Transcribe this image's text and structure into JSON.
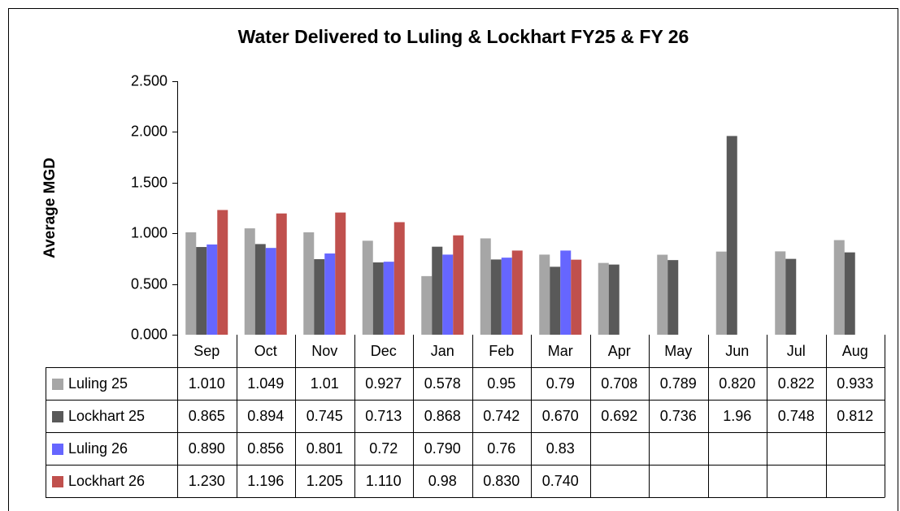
{
  "chart_data": {
    "type": "bar",
    "title": "Water Delivered to Luling & Lockhart FY25 & FY 26",
    "y_label": "Average MGD",
    "categories": [
      "Sep",
      "Oct",
      "Nov",
      "Dec",
      "Jan",
      "Feb",
      "Mar",
      "Apr",
      "May",
      "Jun",
      "Jul",
      "Aug"
    ],
    "series": [
      {
        "name": "Luling 25",
        "color": "#a6a6a6",
        "values": [
          1.01,
          1.049,
          1.01,
          0.927,
          0.578,
          0.95,
          0.79,
          0.708,
          0.789,
          0.82,
          0.822,
          0.933
        ],
        "value_labels": [
          "1.010",
          "1.049",
          "1.01",
          "0.927",
          "0.578",
          "0.95",
          "0.79",
          "0.708",
          "0.789",
          "0.820",
          "0.822",
          "0.933"
        ]
      },
      {
        "name": "Lockhart 25",
        "color": "#595959",
        "values": [
          0.865,
          0.894,
          0.745,
          0.713,
          0.868,
          0.742,
          0.67,
          0.692,
          0.736,
          1.96,
          0.748,
          0.812
        ],
        "value_labels": [
          "0.865",
          "0.894",
          "0.745",
          "0.713",
          "0.868",
          "0.742",
          "0.670",
          "0.692",
          "0.736",
          "1.96",
          "0.748",
          "0.812"
        ]
      },
      {
        "name": "Luling 26",
        "color": "#6666ff",
        "values": [
          0.89,
          0.856,
          0.801,
          0.72,
          0.79,
          0.76,
          0.83,
          null,
          null,
          null,
          null,
          null
        ],
        "value_labels": [
          "0.890",
          "0.856",
          "0.801",
          "0.72",
          "0.790",
          "0.76",
          "0.83",
          null,
          null,
          null,
          null,
          null
        ]
      },
      {
        "name": "Lockhart 26",
        "color": "#c0504d",
        "values": [
          1.23,
          1.196,
          1.205,
          1.11,
          0.98,
          0.83,
          0.74,
          null,
          null,
          null,
          null,
          null
        ],
        "value_labels": [
          "1.230",
          "1.196",
          "1.205",
          "1.110",
          "0.98",
          "0.830",
          "0.740",
          null,
          null,
          null,
          null,
          null
        ]
      }
    ],
    "ylim": [
      0,
      2.5
    ],
    "yticks": [
      {
        "value": 0,
        "label": "0.000"
      },
      {
        "value": 0.5,
        "label": "0.500"
      },
      {
        "value": 1,
        "label": "1.000"
      },
      {
        "value": 1.5,
        "label": "1.500"
      },
      {
        "value": 2,
        "label": "2.000"
      },
      {
        "value": 2.5,
        "label": "2.500"
      }
    ],
    "grid": false,
    "data_table": true
  }
}
